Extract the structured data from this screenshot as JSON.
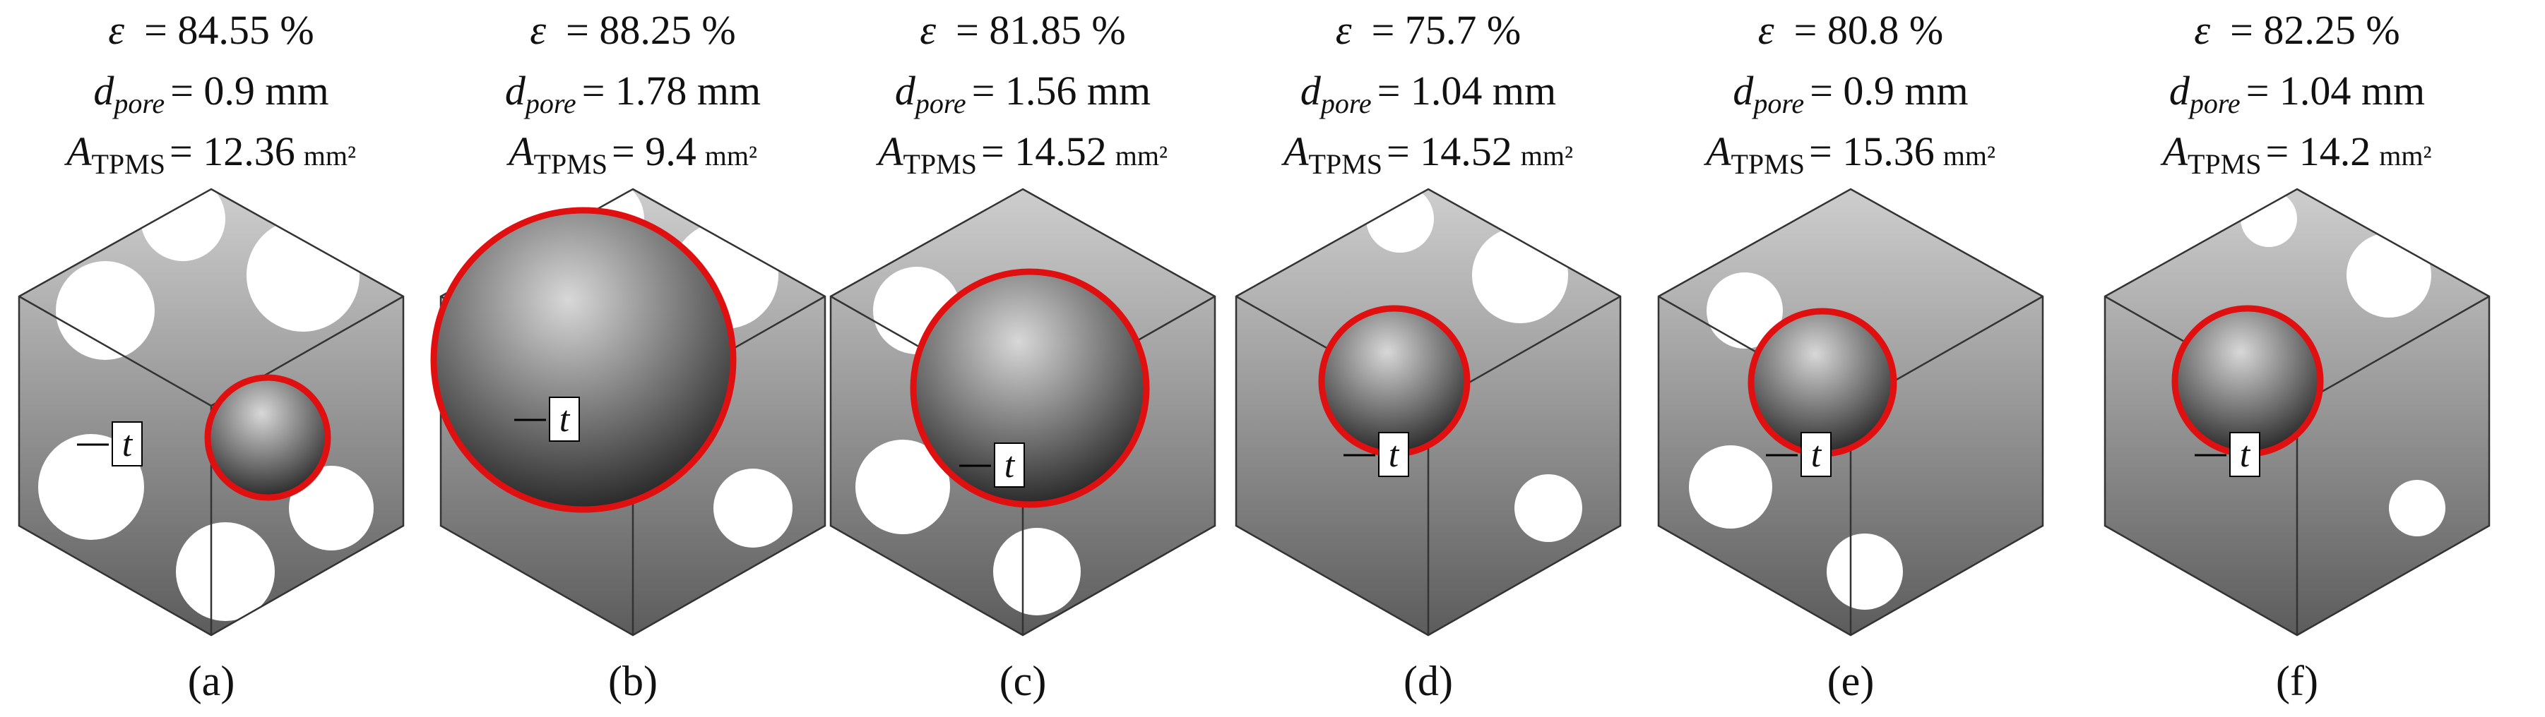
{
  "symbols": {
    "epsilon": "ε",
    "d": "d",
    "pore": "pore",
    "A": "A",
    "tpms": "TPMS",
    "area_unit": "mm²",
    "thickness": "t"
  },
  "panels": [
    {
      "porosity": "= 84.55 %",
      "pore_diameter": "= 0.9 mm",
      "surface_area": "= 12.36",
      "label": "(a)"
    },
    {
      "porosity": "= 88.25 %",
      "pore_diameter": "= 1.78 mm",
      "surface_area": "= 9.4",
      "label": "(b)"
    },
    {
      "porosity": "= 81.85 %",
      "pore_diameter": "= 1.56 mm",
      "surface_area": "= 14.52",
      "label": "(c)"
    },
    {
      "porosity": "= 75.7 %",
      "pore_diameter": "= 1.04 mm",
      "surface_area": "= 14.52",
      "label": "(d)"
    },
    {
      "porosity": "= 80.8 %",
      "pore_diameter": "= 0.9 mm",
      "surface_area": "= 15.36",
      "label": "(e)"
    },
    {
      "porosity": "= 82.25 %",
      "pore_diameter": "= 1.04 mm",
      "surface_area": "= 14.2",
      "label": "(f)"
    }
  ]
}
